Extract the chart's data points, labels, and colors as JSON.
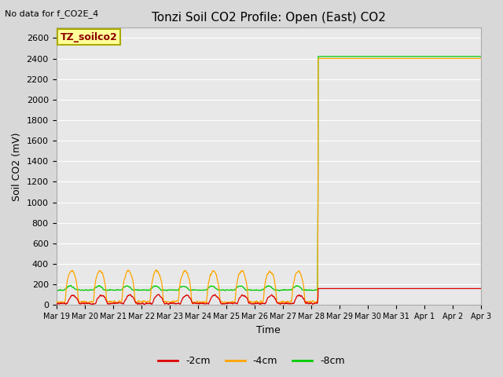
{
  "title": "Tonzi Soil CO2 Profile: Open (East) CO2",
  "no_data_text": "No data for f_CO2E_4",
  "legend_box_label": "TZ_soilco2",
  "ylabel": "Soil CO2 (mV)",
  "xlabel": "Time",
  "ylim": [
    0,
    2700
  ],
  "yticks": [
    0,
    200,
    400,
    600,
    800,
    1000,
    1200,
    1400,
    1600,
    1800,
    2000,
    2200,
    2400,
    2600
  ],
  "colors": {
    "red": "#dd0000",
    "orange": "#ffa500",
    "green": "#00cc00",
    "bg": "#e8e8e8",
    "fig_bg": "#d8d8d8"
  },
  "legend_items": [
    {
      "label": "-2cm",
      "color": "#dd0000"
    },
    {
      "label": "-4cm",
      "color": "#ffa500"
    },
    {
      "label": "-8cm",
      "color": "#00cc00"
    }
  ],
  "xtick_labels": [
    "Mar 19",
    "Mar 20",
    "Mar 21",
    "Mar 22",
    "Mar 23",
    "Mar 24",
    "Mar 25",
    "Mar 26",
    "Mar 27",
    "Mar 28",
    "Mar 29",
    "Mar 30",
    "Mar 31",
    "Apr 1",
    "Apr 2",
    "Apr 3"
  ],
  "jump_day": 9.25,
  "flat_value_orange": 2400,
  "flat_value_green": 2420,
  "flat_value_red": 0,
  "seed": 42
}
